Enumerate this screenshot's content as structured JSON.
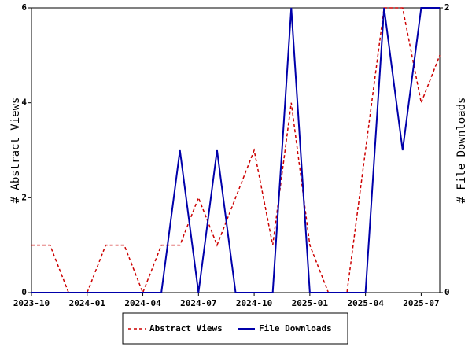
{
  "chart_data": {
    "type": "line",
    "x": [
      "2023-10",
      "2023-11",
      "2023-12",
      "2024-01",
      "2024-02",
      "2024-03",
      "2024-04",
      "2024-05",
      "2024-06",
      "2024-07",
      "2024-08",
      "2024-09",
      "2024-10",
      "2024-11",
      "2024-12",
      "2025-01",
      "2025-02",
      "2025-03",
      "2025-04",
      "2025-05",
      "2025-06",
      "2025-07",
      "2025-08"
    ],
    "xticks": [
      "2023-10",
      "2024-01",
      "2024-04",
      "2024-07",
      "2024-10",
      "2025-01",
      "2025-04",
      "2025-07"
    ],
    "ylabel": "# Abstract Views",
    "y2label": "# File Downloads",
    "ylim": [
      0,
      6
    ],
    "yticks": [
      0,
      2,
      4,
      6
    ],
    "y2lim": [
      0,
      2
    ],
    "y2ticks": [
      0,
      2
    ],
    "legend": "bottom",
    "series": [
      {
        "name": "Abstract Views",
        "color": "#cc0000",
        "dash": true,
        "values": [
          1,
          1,
          0,
          0,
          1,
          1,
          0,
          1,
          1,
          2,
          1,
          2,
          3,
          1,
          4,
          1,
          0,
          0,
          3,
          6,
          6,
          4,
          5
        ]
      },
      {
        "name": "File Downloads",
        "color": "#0000aa",
        "axis": "y2",
        "values": [
          0,
          0,
          0,
          0,
          0,
          0,
          0,
          0,
          1,
          0,
          1,
          0,
          0,
          0,
          2,
          0,
          0,
          0,
          0,
          2,
          1,
          2,
          2
        ]
      }
    ]
  }
}
